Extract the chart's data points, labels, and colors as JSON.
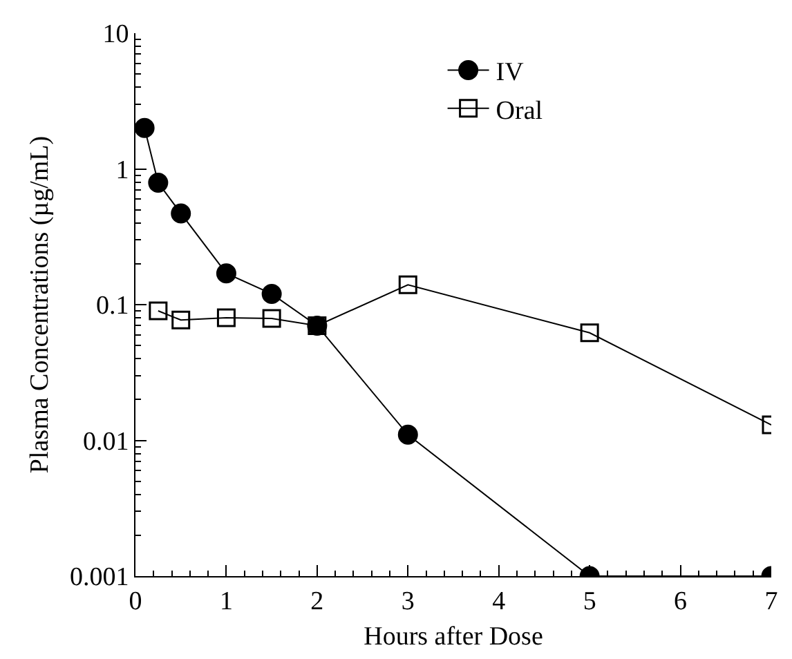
{
  "chart_data": {
    "type": "line",
    "xlabel": "Hours after Dose",
    "ylabel": "Plasma Concentrations (µg/mL)",
    "log": "y",
    "grid": false,
    "legend": "top right",
    "xlim": [
      0,
      7
    ],
    "xticks": [
      0,
      1,
      2,
      3,
      4,
      5,
      6,
      7
    ],
    "ylim": [
      0.001,
      10
    ],
    "yticks": [
      0.001,
      0.01,
      0.1,
      1,
      10
    ],
    "series": [
      {
        "name": "IV",
        "color": "#000000",
        "marker": "circle",
        "x": [
          0.1,
          0.25,
          0.5,
          1,
          1.5,
          2,
          3,
          5,
          7
        ],
        "values": [
          2,
          0.79,
          0.47,
          0.17,
          0.12,
          0.07,
          0.011,
          0.001,
          0.001
        ]
      },
      {
        "name": "Oral",
        "color": "#000000",
        "marker": "square",
        "x": [
          0.25,
          0.5,
          1,
          1.5,
          2,
          3,
          5,
          7
        ],
        "values": [
          0.09,
          0.077,
          0.08,
          0.079,
          0.07,
          0.14,
          0.062,
          0.013
        ]
      }
    ]
  }
}
